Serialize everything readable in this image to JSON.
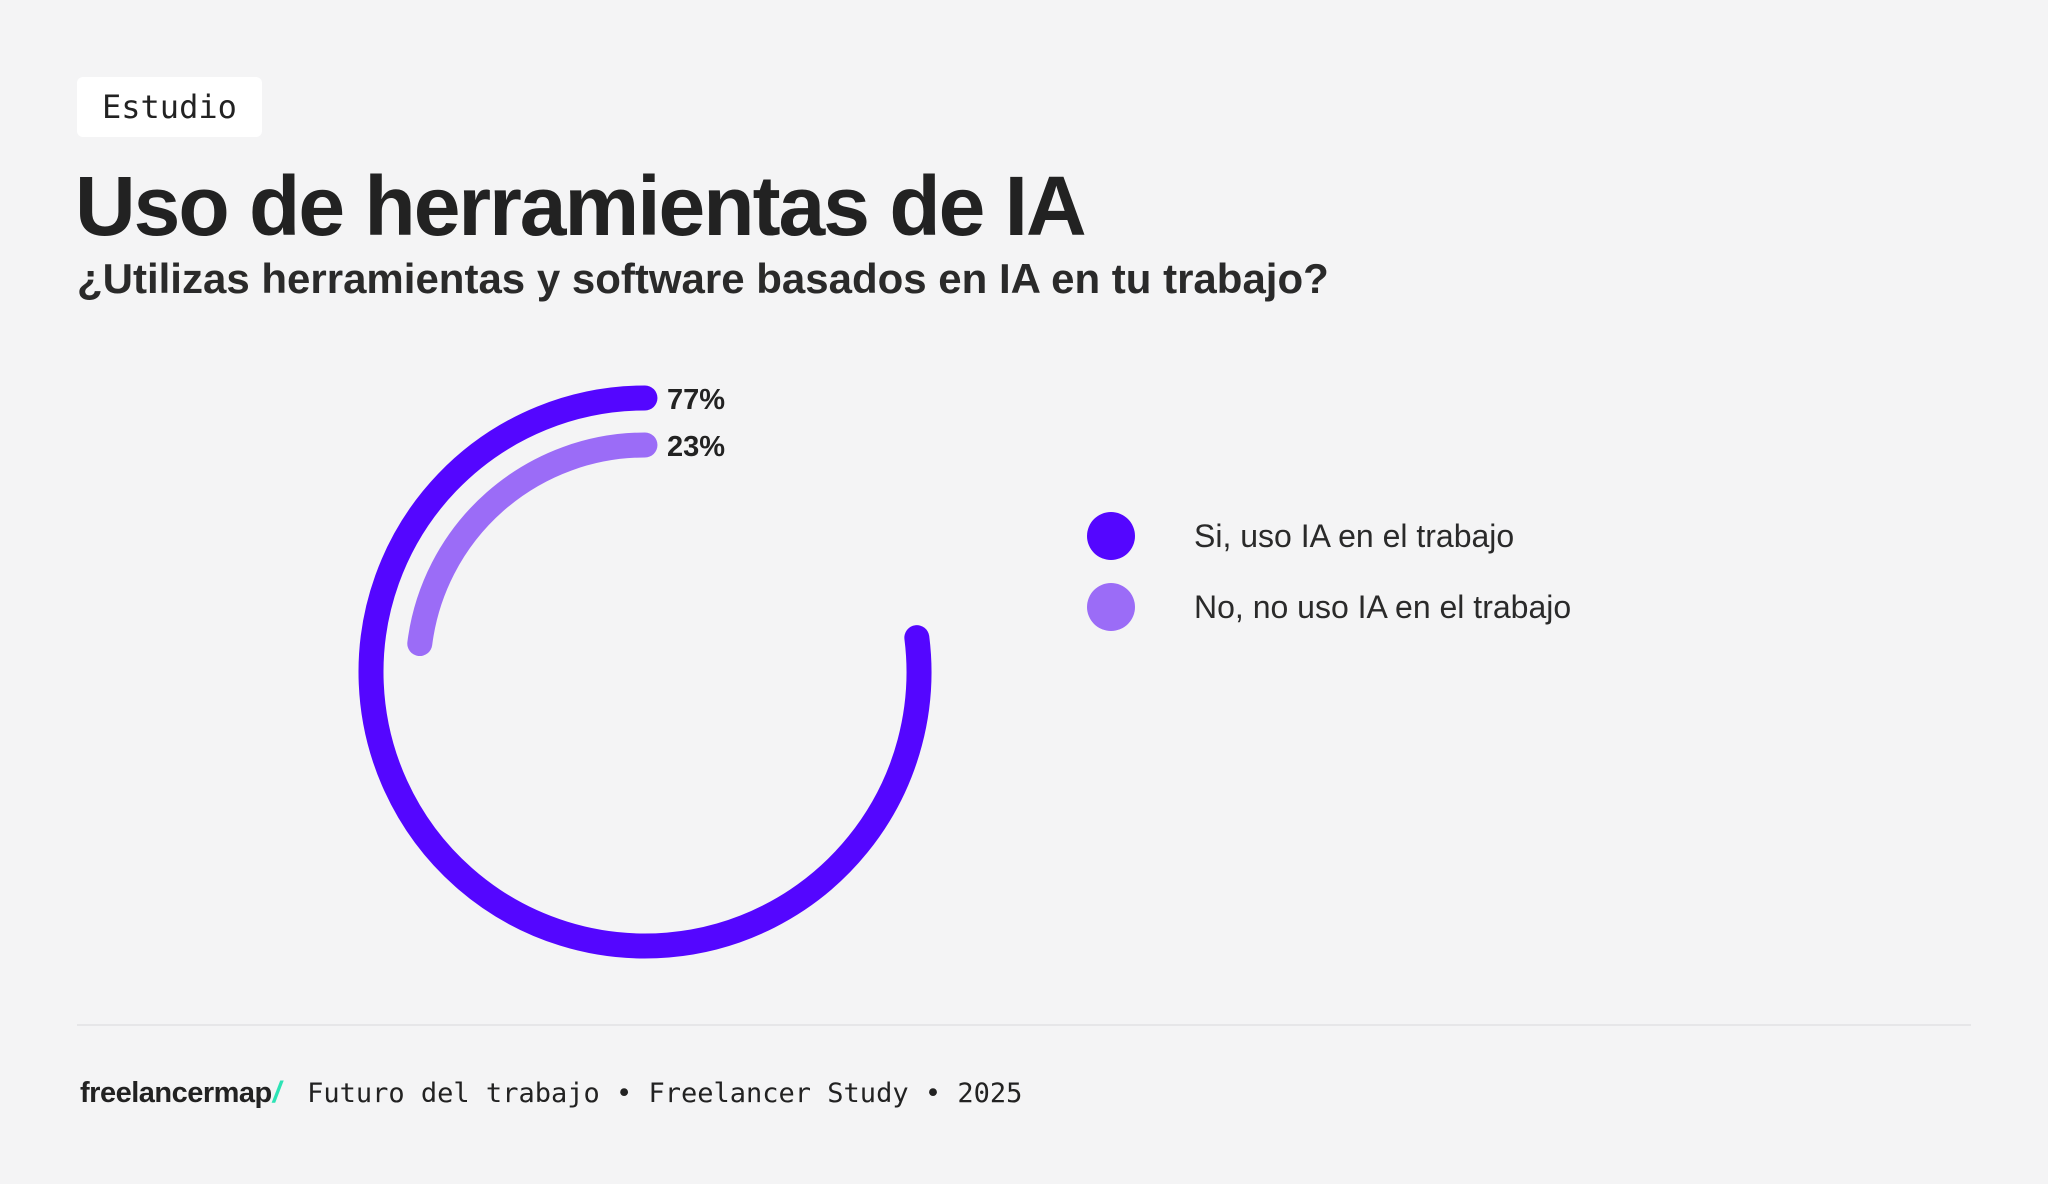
{
  "badge": "Estudio",
  "title": "Uso de herramientas de IA",
  "subtitle": "¿Utilizas herramientas y software basados en IA en tu trabajo?",
  "colors": {
    "background": "#f4f4f5",
    "series_yes": "#5406ff",
    "series_no": "#9b6cf7",
    "logo_accent": "#2de3b5"
  },
  "chart_data": {
    "type": "pie",
    "style": "radial-bar",
    "title": "",
    "series": [
      {
        "name": "Si, uso IA en el trabajo",
        "value": 77,
        "label": "77%",
        "color": "#5406ff"
      },
      {
        "name": "No, no uso IA en el trabajo",
        "value": 23,
        "label": "23%",
        "color": "#9b6cf7"
      }
    ],
    "legend_position": "right"
  },
  "legend": {
    "items": [
      {
        "label": "Si, uso IA en el trabajo",
        "color": "#5406ff"
      },
      {
        "label": "No, no uso IA en el trabajo",
        "color": "#9b6cf7"
      }
    ]
  },
  "footer": {
    "logo_text": "freelancermap",
    "logo_slash": "/",
    "text": "Futuro del trabajo • Freelancer Study • 2025"
  }
}
